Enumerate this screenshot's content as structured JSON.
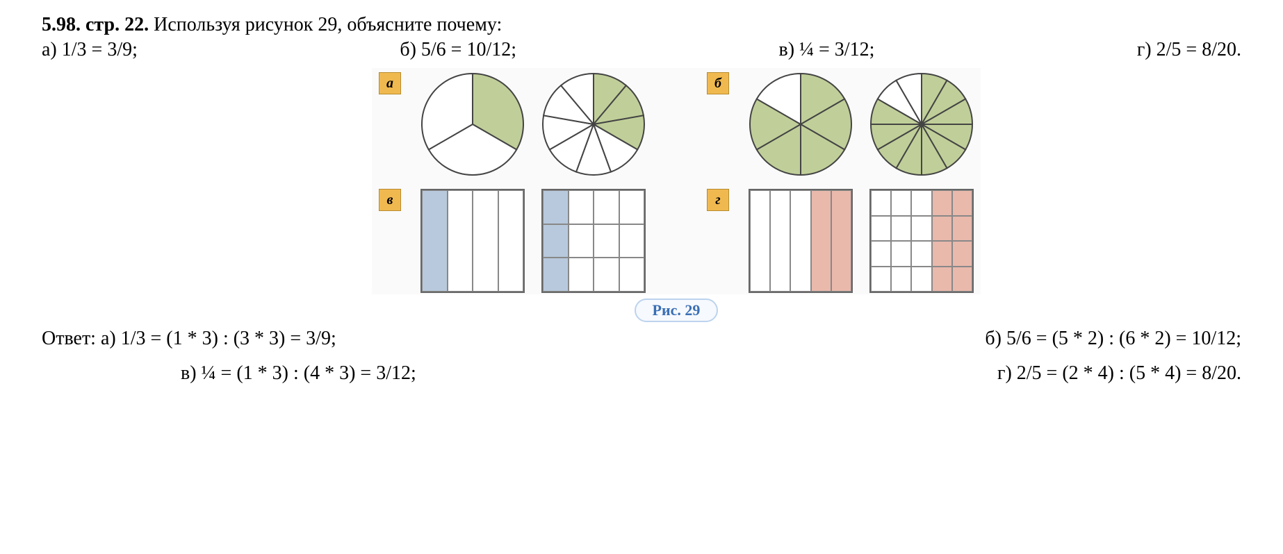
{
  "header": {
    "num": "5.98.",
    "page": "стр. 22.",
    "text": "Используя рисунок 29, объясните почему:"
  },
  "problems": {
    "a": "а) 1/3 = 3/9;",
    "b": "б) 5/6 = 10/12;",
    "v": "в) ¼ = 3/12;",
    "g": "г) 2/5 = 8/20."
  },
  "figure": {
    "badge_a": "а",
    "badge_b": "б",
    "badge_v": "в",
    "badge_g": "г",
    "caption": "Рис.  29",
    "circle_size": 150,
    "square_size": 150,
    "colors": {
      "green_fill": "#c0cf99",
      "blue_fill": "#b8c9dd",
      "pink_fill": "#e9b9ac",
      "white_fill": "#ffffff",
      "stroke": "#444444",
      "badge_bg": "#f0b94f"
    },
    "a1": {
      "slices": 3,
      "shaded": [
        0
      ],
      "fill": "#c0cf99",
      "start_angle": -90
    },
    "a2": {
      "slices": 9,
      "shaded": [
        0,
        1,
        2
      ],
      "fill": "#c0cf99",
      "start_angle": -90
    },
    "b1": {
      "slices": 6,
      "shaded": [
        0,
        1,
        2,
        3,
        4
      ],
      "fill": "#c0cf99",
      "start_angle": -90
    },
    "b2": {
      "slices": 12,
      "shaded": [
        0,
        1,
        2,
        3,
        4,
        5,
        6,
        7,
        8,
        9
      ],
      "fill": "#c0cf99",
      "start_angle": -90
    },
    "v1": {
      "cols": 4,
      "rows": 1,
      "shaded_cols": [
        0
      ],
      "fill": "#b8c9dd"
    },
    "v2": {
      "cols": 4,
      "rows": 3,
      "shaded_cols": [
        0
      ],
      "fill": "#b8c9dd"
    },
    "g1": {
      "cols": 5,
      "rows": 1,
      "shaded_cols": [
        3,
        4
      ],
      "fill": "#e9b9ac"
    },
    "g2": {
      "cols": 5,
      "rows": 4,
      "shaded_cols": [
        3,
        4
      ],
      "fill": "#e9b9ac"
    }
  },
  "answers": {
    "label": "Ответ:",
    "a": "а) 1/3 = (1 * 3) : (3 * 3) = 3/9;",
    "b": "б) 5/6 = (5 * 2) : (6 * 2) = 10/12;",
    "v": "в) ¼ = (1 * 3) : (4 * 3) = 3/12;",
    "g": "г) 2/5 = (2 * 4) : (5 * 4) = 8/20."
  }
}
